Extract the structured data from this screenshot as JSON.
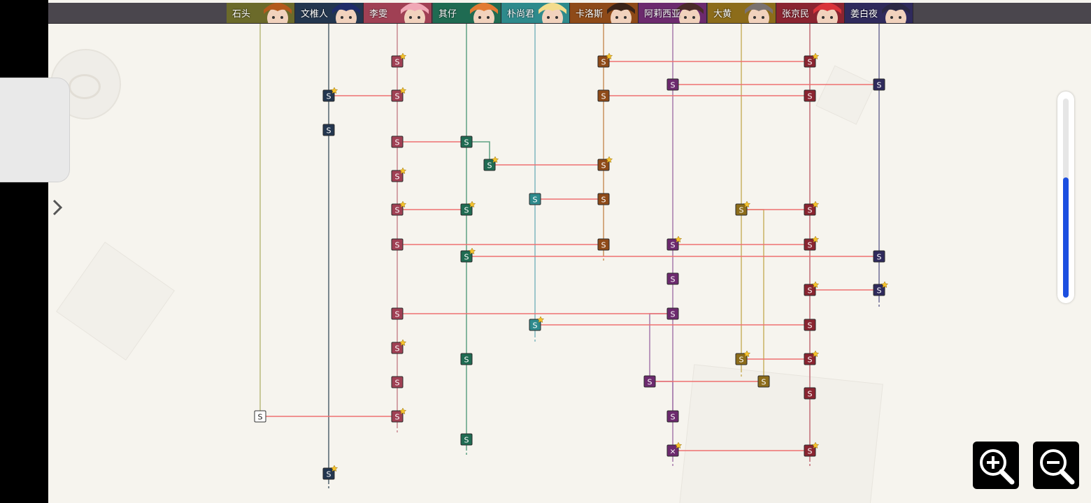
{
  "characters": [
    {
      "name": "石头",
      "color": "#6b6a2a",
      "line": "#b8ba7c",
      "hair": "#b35a1c"
    },
    {
      "name": "文椎人",
      "color": "#23364f",
      "line": "#51636f",
      "hair": "#1f2c6a"
    },
    {
      "name": "李雯",
      "color": "#a04054",
      "line": "#c9868f",
      "hair": "#f0a8b6"
    },
    {
      "name": "其仔",
      "color": "#1f6b52",
      "line": "#5ea284",
      "hair": "#e27b33"
    },
    {
      "name": "朴尚君",
      "color": "#2e8a8c",
      "line": "#7fb6bd",
      "hair": "#f3dc8c"
    },
    {
      "name": "卡洛斯",
      "color": "#8e4a18",
      "line": "#c8915d",
      "hair": "#3a2418"
    },
    {
      "name": "阿莉西亚",
      "color": "#6c2a6e",
      "line": "#a57aab",
      "hair": "#4a2b2a"
    },
    {
      "name": "大黄",
      "color": "#8c6c1a",
      "line": "#c9b162",
      "hair": "#7a7270"
    },
    {
      "name": "张京民",
      "color": "#8a2430",
      "line": "#c26b74",
      "hair": "#d9343a"
    },
    {
      "name": "姜白夜",
      "color": "#2f2a5c",
      "line": "#6f6c96",
      "hair": "#2b2845"
    }
  ],
  "node_label": "S",
  "end_label": "×",
  "colors": {
    "link": "#ee7070",
    "star": "#f5c22c",
    "background": "#f6f4ee",
    "scroll_thumb": "#1c4fe0",
    "start_node": "#ffffff"
  },
  "sidepanel": {
    "icon": "chevron-right-icon"
  },
  "zoom": {
    "in_icon": "zoom-in-icon",
    "out_icon": "zoom-out-icon"
  }
}
